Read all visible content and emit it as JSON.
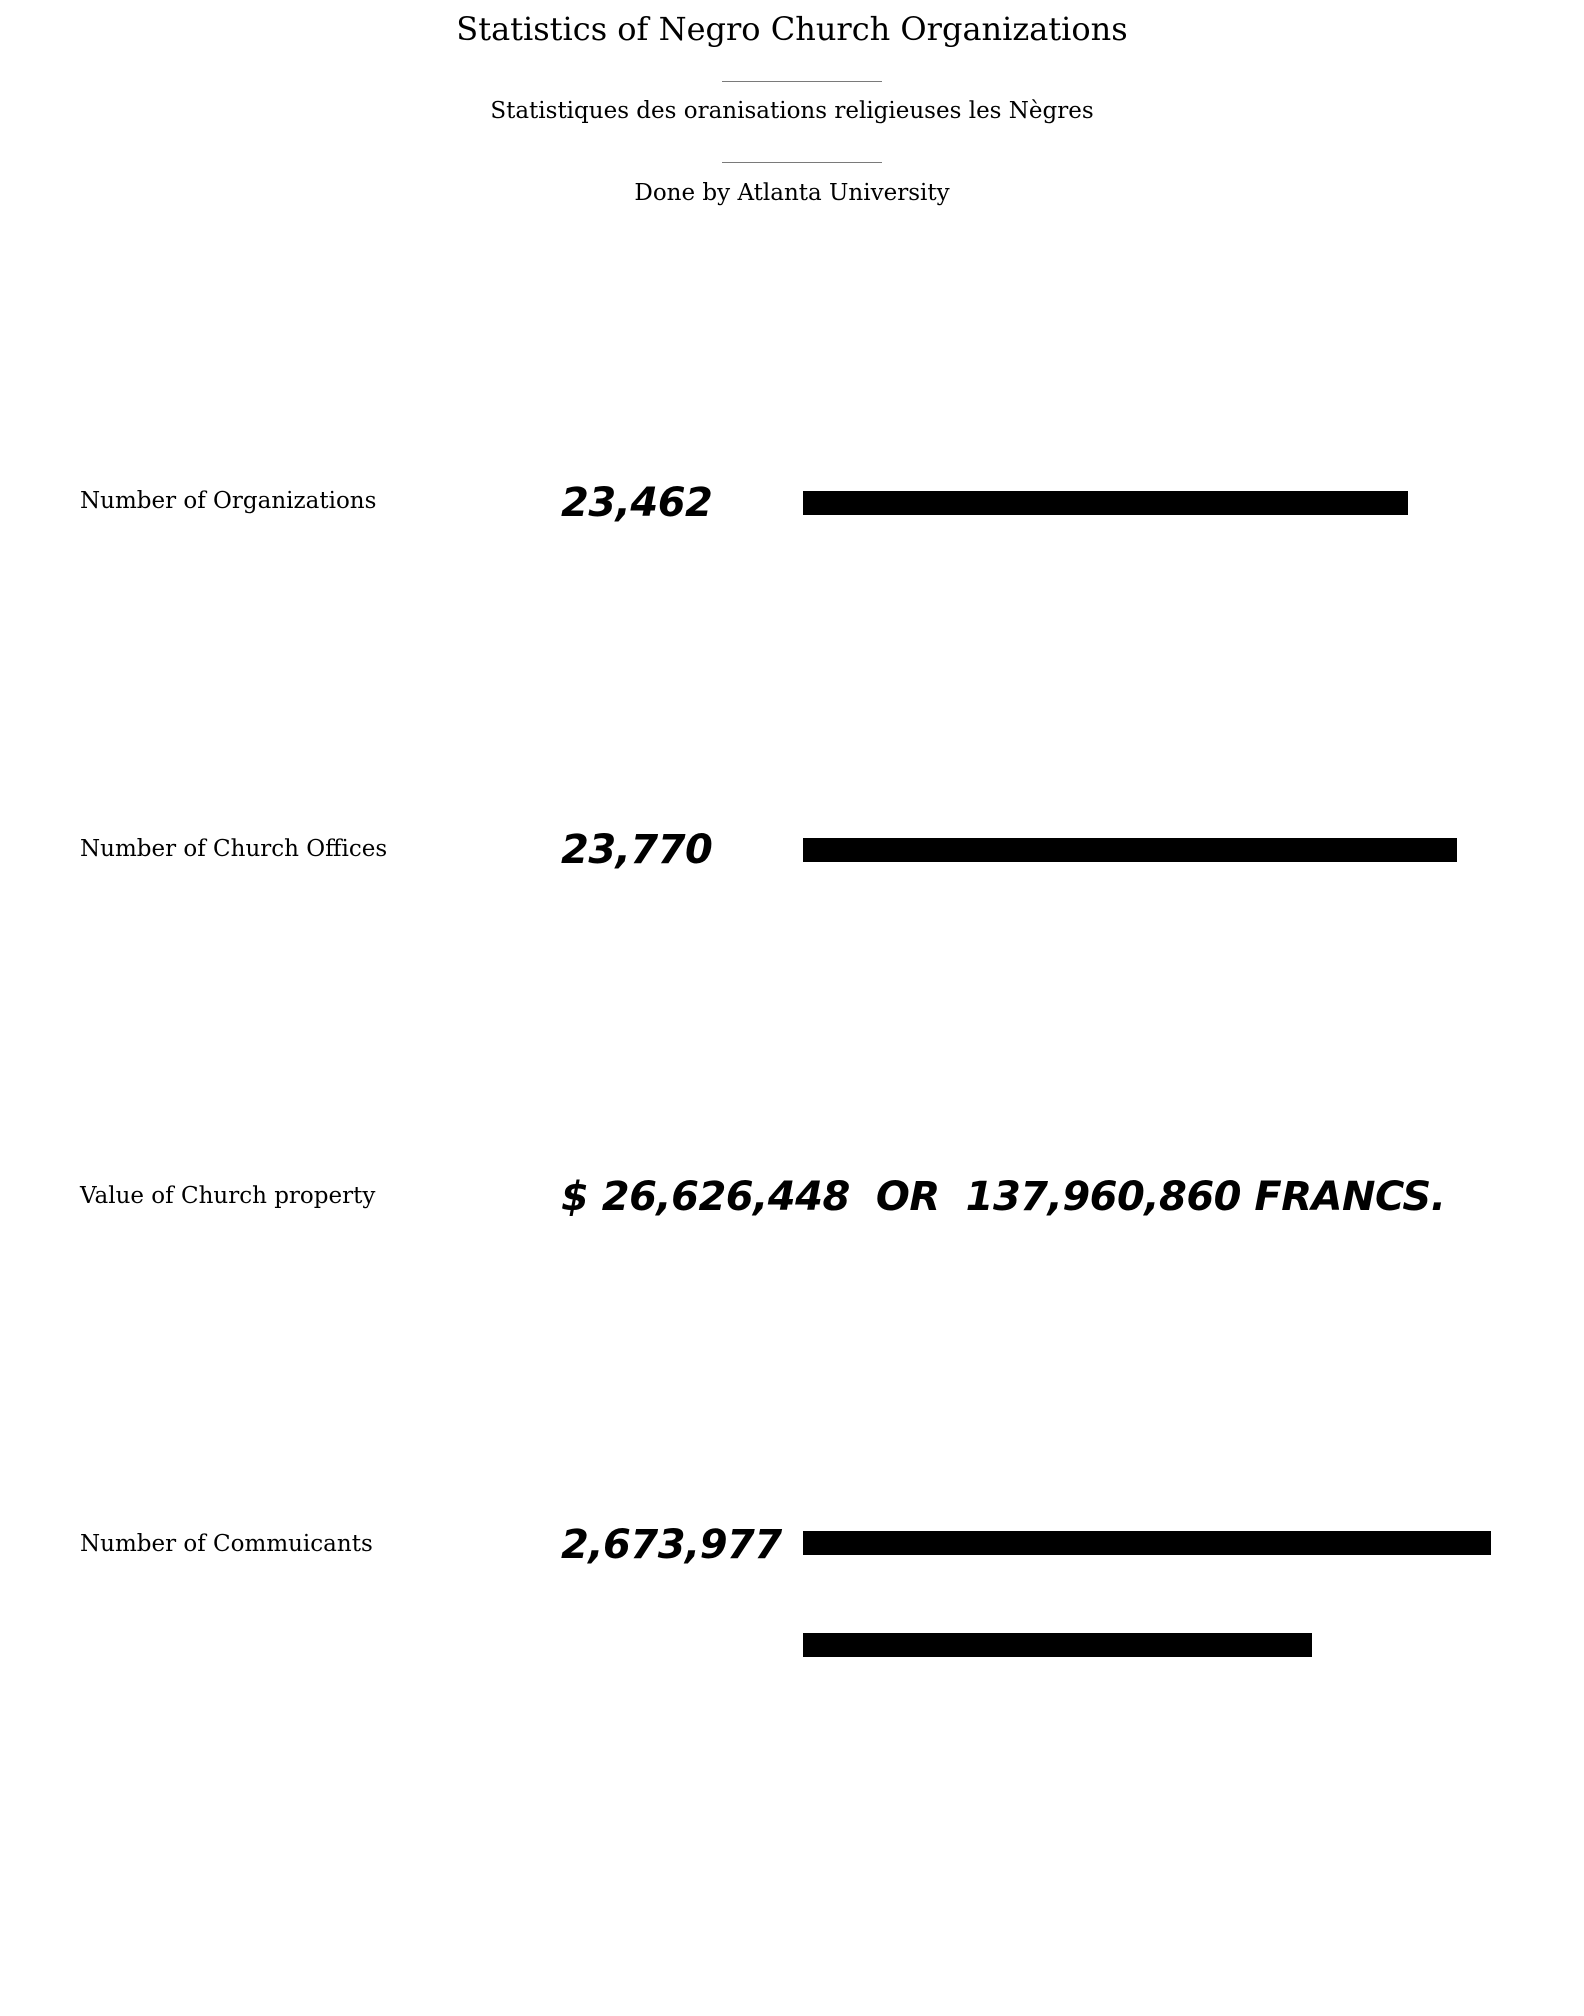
{
  "header": {
    "title": "Statistics of Negro Church Organizations",
    "subtitle": "Statistiques des oranisations religieuses les Nègres",
    "credit": "Done by Atlanta University"
  },
  "rows": [
    {
      "label": "Number of Organizations",
      "value_text": "23,462"
    },
    {
      "label": "Number of Church Offices",
      "value_text": "23,770"
    },
    {
      "label": "Value of Church property",
      "dollars_text": "$ 26,626,448",
      "connector": "OR",
      "francs_text": "137,960,860 FRANCS."
    },
    {
      "label": "Number of Commuicants",
      "value_text": "2,673,977"
    }
  ],
  "colors": {
    "bar": "#000000",
    "text": "#000000",
    "rule": "#7a7a7a",
    "background": "#ffffff"
  },
  "chart_data": {
    "type": "bar",
    "orientation": "horizontal",
    "categories": [
      "Number of Organizations",
      "Number of Church Offices",
      "Number of Commuicants",
      "Number of Commuicants"
    ],
    "values": [
      0.88,
      0.95,
      1.0,
      0.74
    ],
    "value_units": "bar length as fraction of longest bar (no axis printed)",
    "grid": false,
    "legend": "none"
  }
}
